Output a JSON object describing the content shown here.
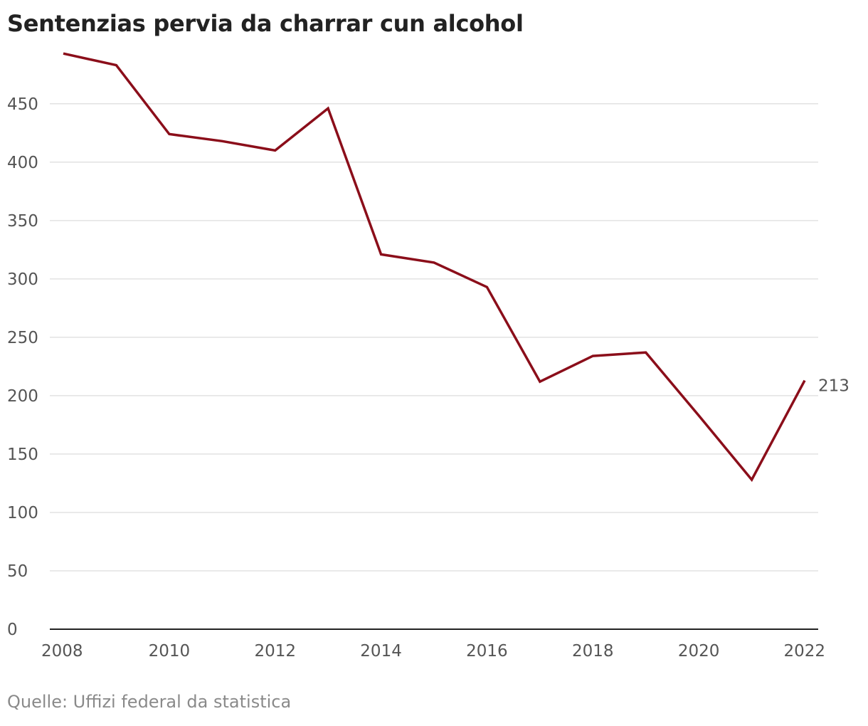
{
  "chart_data": {
    "type": "line",
    "title": "Sentenzias pervia da charrar cun alcohol",
    "source": "Quelle: Uffizi federal da statistica",
    "xlabel": "",
    "ylabel": "",
    "x": [
      2008,
      2009,
      2010,
      2011,
      2012,
      2013,
      2014,
      2015,
      2016,
      2017,
      2018,
      2019,
      2020,
      2021,
      2022
    ],
    "series": [
      {
        "name": "Sentenzias",
        "values": [
          493,
          483,
          424,
          418,
          410,
          446,
          321,
          314,
          293,
          212,
          234,
          237,
          183,
          128,
          213
        ],
        "color": "#8b0e1a"
      }
    ],
    "xlim": [
      2008,
      2022
    ],
    "ylim": [
      0,
      493
    ],
    "x_ticks": [
      "2008",
      "2010",
      "2012",
      "2014",
      "2016",
      "2018",
      "2020",
      "2022"
    ],
    "y_ticks": [
      "0",
      "50",
      "100",
      "150",
      "200",
      "250",
      "300",
      "350",
      "400",
      "450"
    ],
    "end_label": "213",
    "grid": true
  }
}
